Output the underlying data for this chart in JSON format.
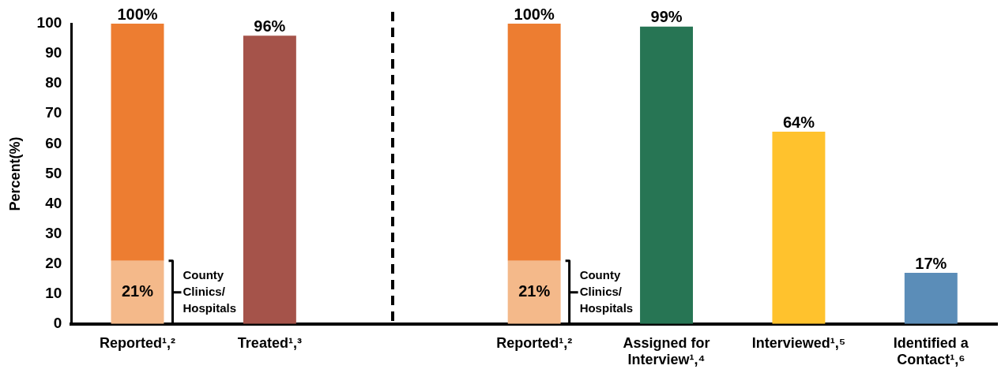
{
  "chart_data": {
    "type": "bar",
    "ylabel": "Percent(%)",
    "categories": [
      "Reported¹,²",
      "Treated¹,³",
      null,
      "Reported¹,²",
      "Assigned for Interview¹,⁴",
      "Interviewed¹,⁵",
      "Identified a Contact¹,⁶"
    ],
    "stacked": true,
    "series": [
      {
        "color": "#f4b98a",
        "values": [
          21,
          null,
          null,
          21,
          null,
          null,
          null
        ],
        "value_labels": [
          "21%",
          null,
          null,
          "21%",
          null,
          null,
          null
        ]
      },
      {
        "colors": [
          "#ed7d31",
          "#a5534a",
          "#ffffff",
          "#ed7d31",
          "#277554",
          "#ffc22d",
          "#5b8db8"
        ],
        "values": [
          79,
          96,
          null,
          79,
          99,
          64,
          17
        ]
      }
    ],
    "totals": [
      "100%",
      "96%",
      null,
      "100%",
      "99%",
      "64%",
      "17%"
    ],
    "annotations": [
      "County Clinics/ Hospitals",
      "County Clinics/ Hospitals"
    ],
    "ylim": [
      0,
      100
    ],
    "yticks": [
      0,
      10,
      20,
      30,
      40,
      50,
      60,
      70,
      80,
      90,
      100
    ],
    "grid": false,
    "legend": false
  }
}
